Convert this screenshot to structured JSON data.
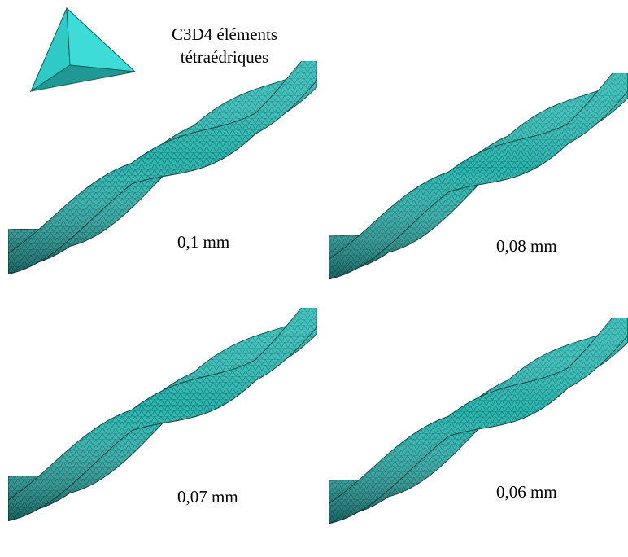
{
  "legend": {
    "line1": "C3D4 éléments",
    "line2": "tétraédriques",
    "icon": "tetrahedron-icon"
  },
  "panels": [
    {
      "label": "0,1 mm"
    },
    {
      "label": "0,08 mm"
    },
    {
      "label": "0,07 mm"
    },
    {
      "label": "0,06 mm"
    }
  ],
  "colors": {
    "mesh_fill": "#2bb5b0",
    "mesh_dark": "#137a76",
    "mesh_light": "#5fe0dc",
    "tetra_face": "#33d6d4",
    "tetra_dark": "#1c8f8c"
  }
}
